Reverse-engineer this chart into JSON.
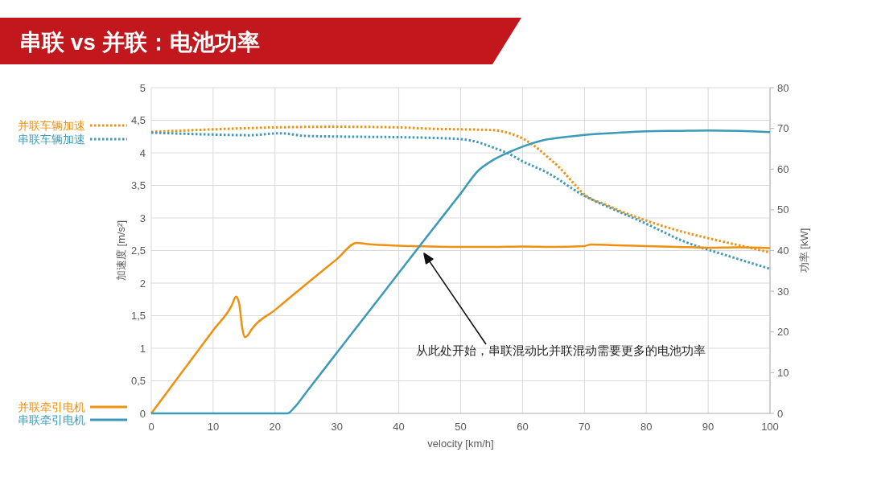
{
  "chart_data": {
    "type": "line",
    "title": "串联 vs 并联：电池功率",
    "xlabel": "velocity [km/h]",
    "ylabel": "加速度 [m/s²]",
    "y2label": "功率 [kW]",
    "xlim": [
      0,
      100
    ],
    "xticks": [
      0,
      10,
      20,
      30,
      40,
      50,
      60,
      70,
      80,
      90,
      100
    ],
    "ylim": [
      0,
      5
    ],
    "yticks": [
      0,
      {
        "value": 0.5,
        "label": "0,5"
      },
      1,
      {
        "value": 1.5,
        "label": "1,5"
      },
      2,
      {
        "value": 2.5,
        "label": "2,5"
      },
      3,
      {
        "value": 3.5,
        "label": "3,5"
      },
      4,
      {
        "value": 4.5,
        "label": "4,5"
      },
      5
    ],
    "y2lim": [
      0,
      80
    ],
    "y2ticks": [
      0,
      10,
      20,
      30,
      40,
      50,
      60,
      70,
      80
    ],
    "grid": true,
    "legend": "left",
    "series": [
      {
        "name": "并联车辆加速",
        "color": "#f0900f",
        "line_style": "dotted",
        "x": [
          0,
          10,
          20,
          30,
          40,
          45,
          50,
          55,
          57.5,
          60,
          62,
          64,
          66,
          68,
          70,
          73.6,
          76,
          80,
          85,
          90,
          95,
          100
        ],
        "values": [
          4.32,
          4.36,
          4.39,
          4.4,
          4.39,
          4.37,
          4.36,
          4.35,
          4.31,
          4.22,
          4.1,
          3.94,
          3.77,
          3.56,
          3.36,
          3.2,
          3.1,
          2.96,
          2.81,
          2.69,
          2.58,
          2.47
        ]
      },
      {
        "name": "串联车辆加速",
        "color": "#3b9ab8",
        "line_style": "dotted",
        "x": [
          0,
          10,
          15.9,
          20.8,
          24.9,
          30,
          40,
          45,
          50,
          52.5,
          55,
          57.9,
          60,
          63.7,
          70,
          75,
          79.8,
          86.1,
          92.8,
          100
        ],
        "values": [
          4.31,
          4.28,
          4.27,
          4.3,
          4.26,
          4.25,
          4.24,
          4.23,
          4.21,
          4.17,
          4.09,
          3.98,
          3.87,
          3.71,
          3.34,
          3.12,
          2.92,
          2.64,
          2.43,
          2.22
        ]
      },
      {
        "name": "并联牵引电机",
        "color": "#f0900f",
        "line_style": "solid",
        "axis": "y2",
        "x": [
          0,
          5,
          10,
          13,
          13.7,
          14.2,
          14.7,
          15.1,
          15.6,
          16.2,
          20,
          25,
          30,
          33.2,
          35,
          40,
          45,
          50,
          55,
          60,
          65,
          70,
          71.1,
          75,
          80,
          85,
          90,
          95,
          100
        ],
        "values": [
          0,
          10.2,
          20.4,
          26.5,
          28.7,
          27,
          21,
          18.7,
          19.2,
          20.6,
          25.4,
          31.7,
          37.9,
          41.9,
          41.6,
          41.2,
          41,
          40.9,
          40.9,
          41,
          40.9,
          41.1,
          41.5,
          41.3,
          41.1,
          40.9,
          40.7,
          40.8,
          40.6
        ]
      },
      {
        "name": "串联牵引电机",
        "color": "#3b9ab8",
        "line_style": "solid",
        "axis": "y2",
        "x": [
          0,
          10,
          20,
          22,
          23.1,
          25,
          30,
          35,
          40,
          45,
          50,
          52.9,
          55,
          57.9,
          60,
          63.7,
          67,
          70,
          75,
          80,
          85,
          90,
          95,
          100
        ],
        "values": [
          0,
          0,
          0,
          0,
          1.4,
          5.1,
          14.9,
          24.7,
          34.5,
          44.3,
          54,
          59.7,
          62,
          64.2,
          65.5,
          67.2,
          67.9,
          68.4,
          68.9,
          69.3,
          69.4,
          69.5,
          69.4,
          69.1
        ]
      }
    ],
    "annotations": [
      "从此处开始，串联混动比并联混动需要更多的电池功率"
    ]
  }
}
